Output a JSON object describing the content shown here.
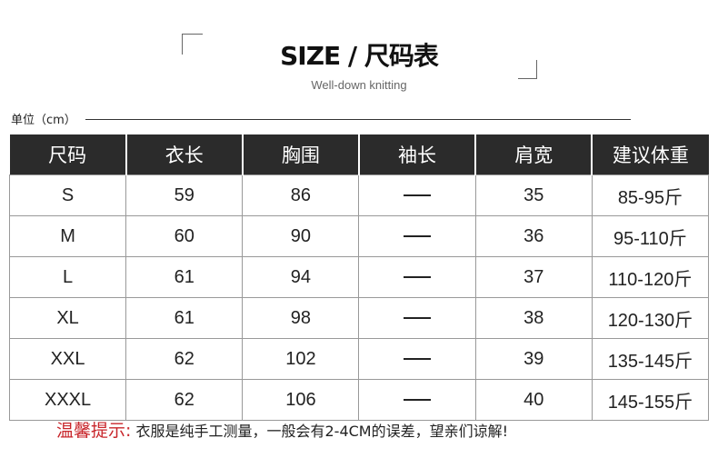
{
  "header": {
    "title": "SIZE / 尺码表",
    "subtitle": "Well-down knitting",
    "unit": "单位（cm）"
  },
  "table": {
    "columns": [
      "尺码",
      "衣长",
      "胸围",
      "袖长",
      "肩宽",
      "建议体重"
    ],
    "rows": [
      [
        "S",
        "59",
        "86",
        "—",
        "35",
        "85-95斤"
      ],
      [
        "M",
        "60",
        "90",
        "—",
        "36",
        "95-110斤"
      ],
      [
        "L",
        "61",
        "94",
        "—",
        "37",
        "110-120斤"
      ],
      [
        "XL",
        "61",
        "98",
        "—",
        "38",
        "120-130斤"
      ],
      [
        "XXL",
        "62",
        "102",
        "—",
        "39",
        "135-145斤"
      ],
      [
        "XXXL",
        "62",
        "106",
        "—",
        "40",
        "145-155斤"
      ]
    ]
  },
  "note": {
    "label": "温馨提示:",
    "text": " 衣服是纯手工测量，一般会有2-4CM的误差，望亲们谅解!"
  },
  "colors": {
    "header_bg": "#2b2b2b",
    "note_accent": "#c8262b"
  }
}
